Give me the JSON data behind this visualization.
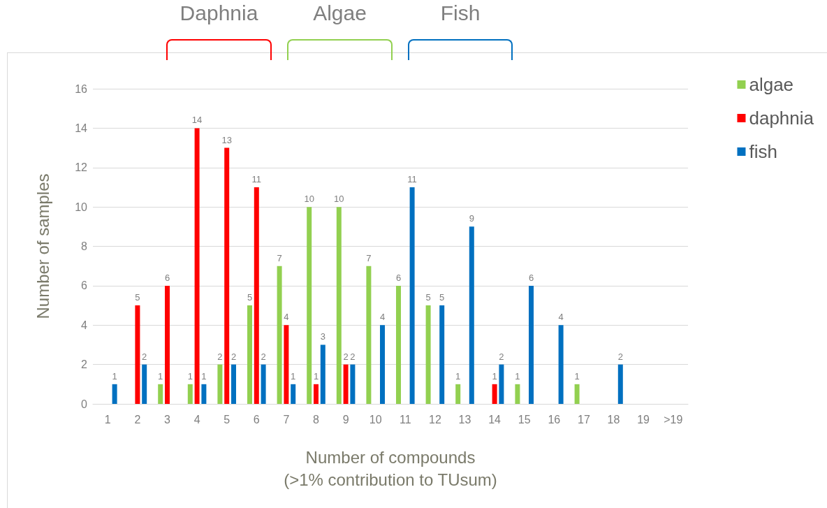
{
  "chart_data": {
    "type": "bar",
    "xlabel": "Number of compounds\n(>1% contribution to TUsum)",
    "ylabel": "Number of samples",
    "categories": [
      "1",
      "2",
      "3",
      "4",
      "5",
      "6",
      "7",
      "8",
      "9",
      "10",
      "11",
      "12",
      "13",
      "14",
      "15",
      "16",
      "17",
      "18",
      "19",
      ">19"
    ],
    "series": [
      {
        "name": "algae",
        "color": "#92d050",
        "values": [
          0,
          0,
          1,
          1,
          2,
          5,
          7,
          10,
          10,
          7,
          6,
          5,
          1,
          0,
          1,
          0,
          1,
          0,
          0,
          0
        ],
        "value_labels": [
          null,
          null,
          "1",
          "1",
          "2",
          "5",
          "7",
          "10",
          "10",
          "7",
          "6",
          "5",
          "1",
          null,
          "1",
          null,
          "1",
          null,
          null,
          null
        ]
      },
      {
        "name": "daphnia",
        "color": "#ff0000",
        "values": [
          0,
          5,
          6,
          14,
          13,
          11,
          4,
          1,
          2,
          0,
          0,
          0,
          0,
          1,
          0,
          0,
          0,
          0,
          0,
          0
        ],
        "value_labels": [
          null,
          "5",
          "6",
          "14",
          "13",
          "11",
          "4",
          "1",
          "2",
          null,
          null,
          null,
          null,
          "1",
          null,
          null,
          null,
          null,
          null,
          null
        ]
      },
      {
        "name": "fish",
        "color": "#0070c0",
        "values": [
          1,
          2,
          0,
          1,
          2,
          2,
          1,
          3,
          2,
          4,
          11,
          5,
          9,
          2,
          6,
          4,
          0,
          2,
          0,
          0
        ],
        "value_labels": [
          "1",
          "2",
          null,
          "1",
          "2",
          "2",
          "1",
          "3",
          "2",
          "4",
          "11",
          "5",
          "9",
          "2",
          "6",
          "4",
          null,
          "2",
          null,
          null
        ]
      }
    ],
    "annotations": [
      "Daphnia",
      "Algae",
      "Fish"
    ],
    "ylim": [
      0,
      16
    ],
    "yticks": [
      0,
      2,
      4,
      6,
      8,
      10,
      12,
      14,
      16
    ],
    "grid": "y",
    "legend": "top right"
  }
}
